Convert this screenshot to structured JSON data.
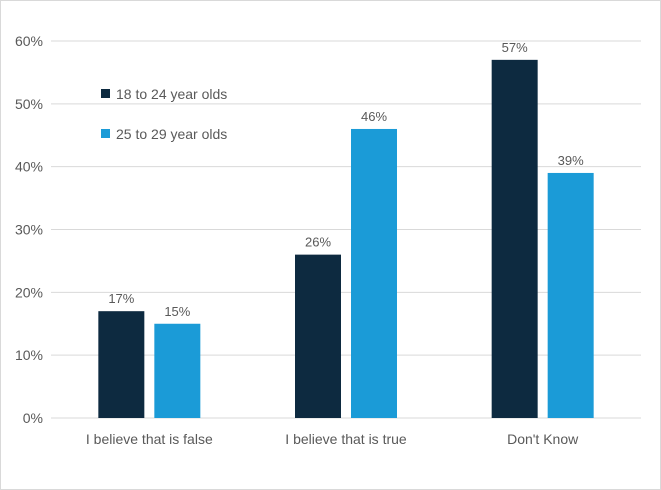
{
  "chart_data": {
    "type": "bar",
    "categories": [
      "I believe that is false",
      "I believe that is true",
      "Don't Know"
    ],
    "series": [
      {
        "name": "18 to 24 year olds",
        "values": [
          17,
          26,
          57
        ],
        "labels": [
          "17%",
          "26%",
          "57%"
        ],
        "color": "#0d2a40"
      },
      {
        "name": "25 to 29 year olds",
        "values": [
          15,
          46,
          39
        ],
        "labels": [
          "15%",
          "46%",
          "39%"
        ],
        "color": "#1b9bd7"
      }
    ],
    "yticks": [
      "0%",
      "10%",
      "20%",
      "30%",
      "40%",
      "50%",
      "60%"
    ],
    "ylim": [
      0,
      60
    ],
    "grid": true,
    "legend_position": "top-left",
    "title": "",
    "xlabel": "",
    "ylabel": ""
  }
}
